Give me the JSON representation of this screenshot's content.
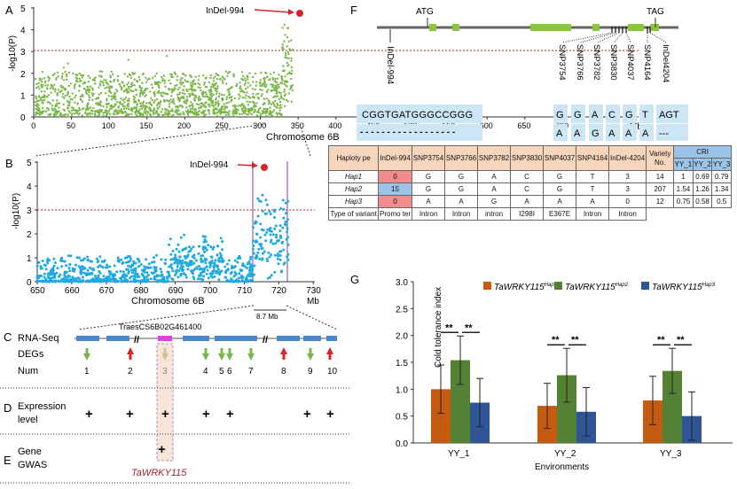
{
  "panel_labels": {
    "a": "A",
    "b": "B",
    "c": "C",
    "d": "D",
    "e": "E",
    "f": "F",
    "g": "G"
  },
  "colors": {
    "green": "#7ab648",
    "blue": "#1fa9e1",
    "red": "#d9232a",
    "orange": "#c55a11",
    "darkgreen": "#548235",
    "darkblue": "#2f5597"
  },
  "panel_a": {
    "ylabel": "-log10(P)",
    "xlabel": "Chromosome 6B",
    "unit": "Mb",
    "yticks": [
      "0",
      "1",
      "2",
      "3",
      "4",
      "5"
    ],
    "xticks": [
      "0",
      "50",
      "100",
      "150",
      "200",
      "250",
      "300",
      "350",
      "400",
      "450",
      "500",
      "550",
      "600",
      "650",
      "700"
    ],
    "threshold": 3,
    "marker_label": "InDel-994"
  },
  "panel_b": {
    "ylabel": "-log10(P)",
    "xlabel": "Chromosome 6B",
    "unit": "Mb",
    "yticks": [
      "0",
      "1",
      "2",
      "3",
      "4",
      "5"
    ],
    "xticks": [
      "650",
      "660",
      "670",
      "680",
      "690",
      "700",
      "710",
      "720",
      "730"
    ],
    "threshold": 3,
    "marker_label": "InDel-994",
    "interval_label": "8.7 Mb"
  },
  "panel_c": {
    "row1": "RNA-Seq",
    "row2": "DEGs",
    "row3": "Num",
    "gene_id": "TraesCS6B02G461400",
    "nums": [
      "1",
      "2",
      "3",
      "4",
      "5",
      "6",
      "7",
      "8",
      "9",
      "10"
    ]
  },
  "panel_d": {
    "label_line1": "Expression",
    "label_line2": "level"
  },
  "panel_e": {
    "label_line1": "Gene",
    "label_line2": "GWAS",
    "gene": "TaWRKY115"
  },
  "panel_f": {
    "atg": "ATG",
    "tag": "TAG",
    "promoter_variant": "InDel-994",
    "snps": [
      "SNP3754",
      "SNP3766",
      "SNP3782",
      "SNP3830",
      "SNP4037",
      "SNP4164",
      "InDel4204"
    ],
    "seq_top": "CGGTGATGGGCCGGG",
    "seq_bottom": "- - - - - - - - - - - - - - - - - -",
    "snp_top": [
      "G",
      "G",
      "A",
      "C",
      "G",
      "T",
      "AGT"
    ],
    "snp_bottom": [
      "A",
      "A",
      "G",
      "A",
      "A",
      "A",
      "---"
    ],
    "table": {
      "headers": [
        "Haploty pe",
        "InDel-994",
        "SNP3754",
        "SNP3766",
        "SNP3782",
        "SNP3830",
        "SNP4037",
        "SNP4164",
        "InDel-4204",
        "Variety No."
      ],
      "cri_header": "CRI",
      "cri_subheaders": [
        "YY_1",
        "YY_2",
        "YY_3"
      ],
      "rows": [
        {
          "hap": "Hap1",
          "indel": "0",
          "snps": [
            "G",
            "G",
            "A",
            "C",
            "G",
            "T"
          ],
          "indel2": "3",
          "n": "14",
          "cri": [
            "1",
            "0.69",
            "0.79"
          ]
        },
        {
          "hap": "Hap2",
          "indel": "15",
          "snps": [
            "G",
            "G",
            "A",
            "C",
            "G",
            "T"
          ],
          "indel2": "3",
          "n": "207",
          "cri": [
            "1.54",
            "1.26",
            "1.34"
          ]
        },
        {
          "hap": "Hap3",
          "indel": "0",
          "snps": [
            "A",
            "A",
            "G",
            "A",
            "A",
            "A"
          ],
          "indel2": "0",
          "n": "12",
          "cri": [
            "0.75",
            "0.58",
            "0.5"
          ]
        }
      ],
      "variant_row": [
        "Type of variant",
        "Promo ter",
        "Intron",
        "Intron",
        "intron",
        "I298I",
        "E367E",
        "Intron",
        "Intron"
      ]
    }
  },
  "chart_data": {
    "type": "bar",
    "ylabel": "Cold tolerance index",
    "xlabel": "Environments",
    "ylim": [
      0,
      3.0
    ],
    "yticks": [
      "0.0",
      "0.5",
      "1.0",
      "1.5",
      "2.0",
      "2.5",
      "3.0"
    ],
    "categories": [
      "YY_1",
      "YY_2",
      "YY_3"
    ],
    "series": [
      {
        "name": "TaWRKY115Hap1",
        "gene": "TaWRKY115",
        "hap": "Hap1",
        "color": "#c55a11",
        "values": [
          1.0,
          0.69,
          0.79
        ],
        "errors": [
          0.45,
          0.42,
          0.45
        ]
      },
      {
        "name": "TaWRKY115Hap2",
        "gene": "TaWRKY115",
        "hap": "Hap2",
        "color": "#548235",
        "values": [
          1.54,
          1.26,
          1.34
        ],
        "errors": [
          0.45,
          0.5,
          0.42
        ]
      },
      {
        "name": "TaWRKY115Hap3",
        "gene": "TaWRKY115",
        "hap": "Hap3",
        "color": "#2f5597",
        "values": [
          0.75,
          0.58,
          0.5
        ],
        "errors": [
          0.45,
          0.45,
          0.45
        ]
      }
    ],
    "significance": "**"
  }
}
